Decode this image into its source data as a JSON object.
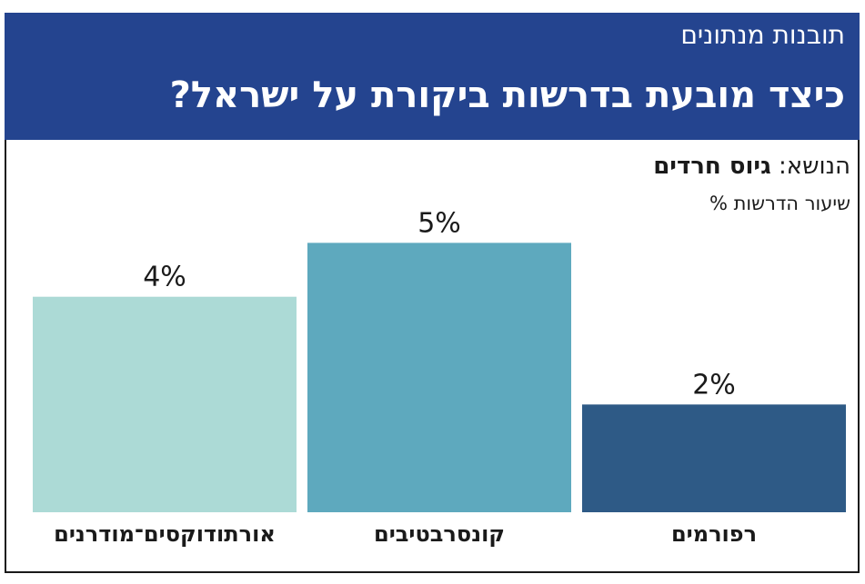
{
  "header": {
    "kicker": "תובנות מנתונים",
    "headline": "כיצד מובעת בדרשות ביקורת על ישראל?"
  },
  "topic": {
    "label": "הנושא: ",
    "value": "גיוס חרדים"
  },
  "chart_data": {
    "type": "bar",
    "title": "כיצד מובעת בדרשות ביקורת על ישראל?",
    "ylabel": "שיעור הדרשות %",
    "categories": [
      "אורתודוקסים־מודרנים",
      "קונסרבטיבים",
      "רפורמים"
    ],
    "values": [
      4,
      5,
      2
    ],
    "value_labels": [
      "4%",
      "5%",
      "2%"
    ],
    "colors": [
      "#acdad6",
      "#5ea9be",
      "#2e5a86"
    ],
    "ylim": [
      0,
      5.9
    ],
    "grid": false,
    "legend": "none"
  }
}
